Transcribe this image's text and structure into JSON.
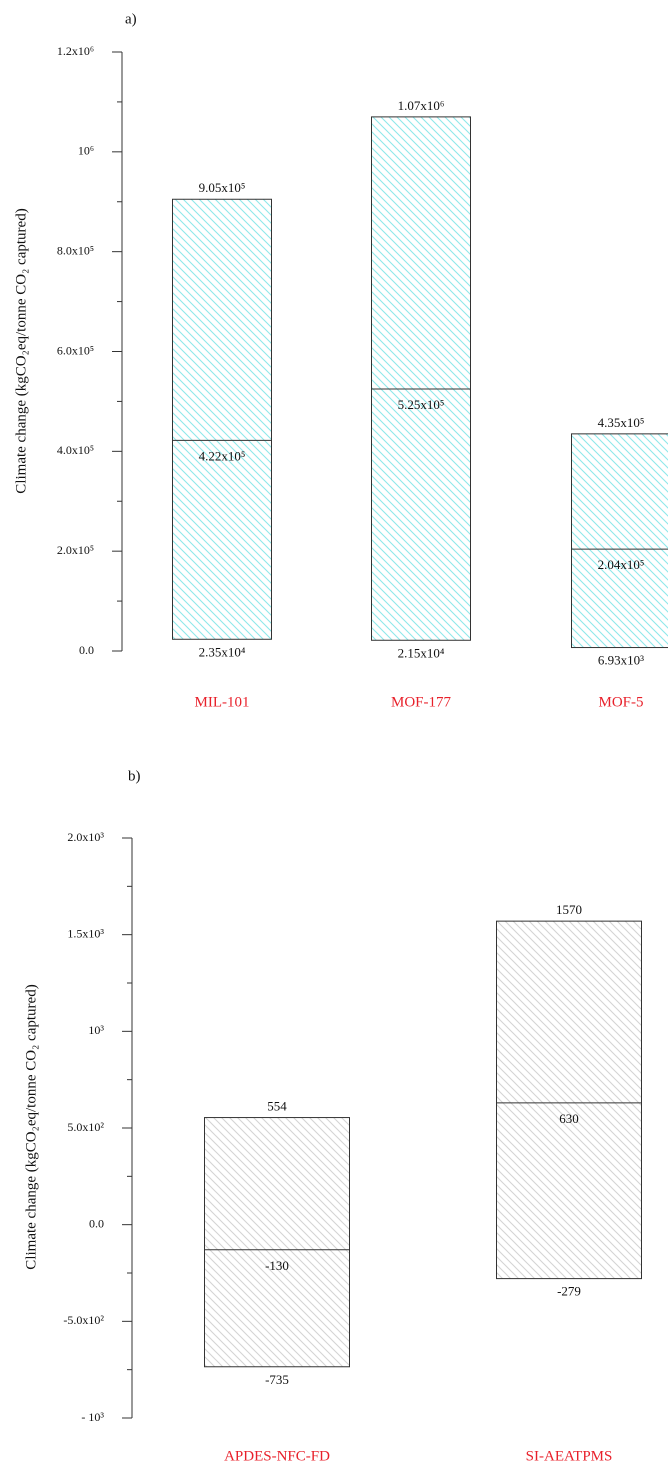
{
  "chart_data": [
    {
      "type": "box",
      "panel_label": "a)",
      "y_label": "Climate change (kgCO₂eq/tonne CO₂ captured)",
      "categories": [
        "MIL-101",
        "MOF-177",
        "MOF-5"
      ],
      "low": [
        23500,
        21500,
        6930
      ],
      "median": [
        422000,
        525000,
        204000
      ],
      "high": [
        905000,
        1070000,
        435000
      ],
      "value_labels": {
        "low": [
          "2.35x10⁴",
          "2.15x10⁴",
          "6.93x10³"
        ],
        "median": [
          "4.22x10⁵",
          "5.25x10⁵",
          "2.04x10⁵"
        ],
        "high": [
          "9.05x10⁵",
          "1.07x10⁶",
          "4.35x10⁵"
        ]
      },
      "color": "#8ee8ea",
      "category_color": "#e8202a",
      "ylim": [
        0,
        1200000
      ],
      "yticks": [
        {
          "value": 0,
          "label": "0.0"
        },
        {
          "value": 200000,
          "label": "2.0x10⁵"
        },
        {
          "value": 400000,
          "label": "4.0x10⁵"
        },
        {
          "value": 600000,
          "label": "6.0x10⁵"
        },
        {
          "value": 800000,
          "label": "8.0x10⁵"
        },
        {
          "value": 1000000,
          "label": "10⁶"
        },
        {
          "value": 1200000,
          "label": "1.2x10⁶"
        }
      ],
      "minor_yticks": [
        100000,
        300000,
        500000,
        700000,
        900000,
        1100000
      ]
    },
    {
      "type": "box",
      "panel_label": "b)",
      "y_label": "Climate change (kgCO₂eq/tonne CO₂ captured)",
      "categories": [
        "APDES-NFC-FD",
        "SI-AEATPMS"
      ],
      "low": [
        -735,
        -279
      ],
      "median": [
        -130,
        630
      ],
      "high": [
        554,
        1570
      ],
      "color": "#d4d4d4",
      "category_color": "#e8202a",
      "ylim": [
        -1000,
        2000
      ],
      "yticks": [
        {
          "value": -1000,
          "label": "- 10³"
        },
        {
          "value": -500,
          "label": "-5.0x10²"
        },
        {
          "value": 0,
          "label": "0.0"
        },
        {
          "value": 500,
          "label": "5.0x10²"
        },
        {
          "value": 1000,
          "label": "10³"
        },
        {
          "value": 1500,
          "label": "1.5x10³"
        },
        {
          "value": 2000,
          "label": "2.0x10³"
        }
      ],
      "minor_yticks": [
        -750,
        -250,
        250,
        750,
        1250,
        1750
      ]
    }
  ]
}
